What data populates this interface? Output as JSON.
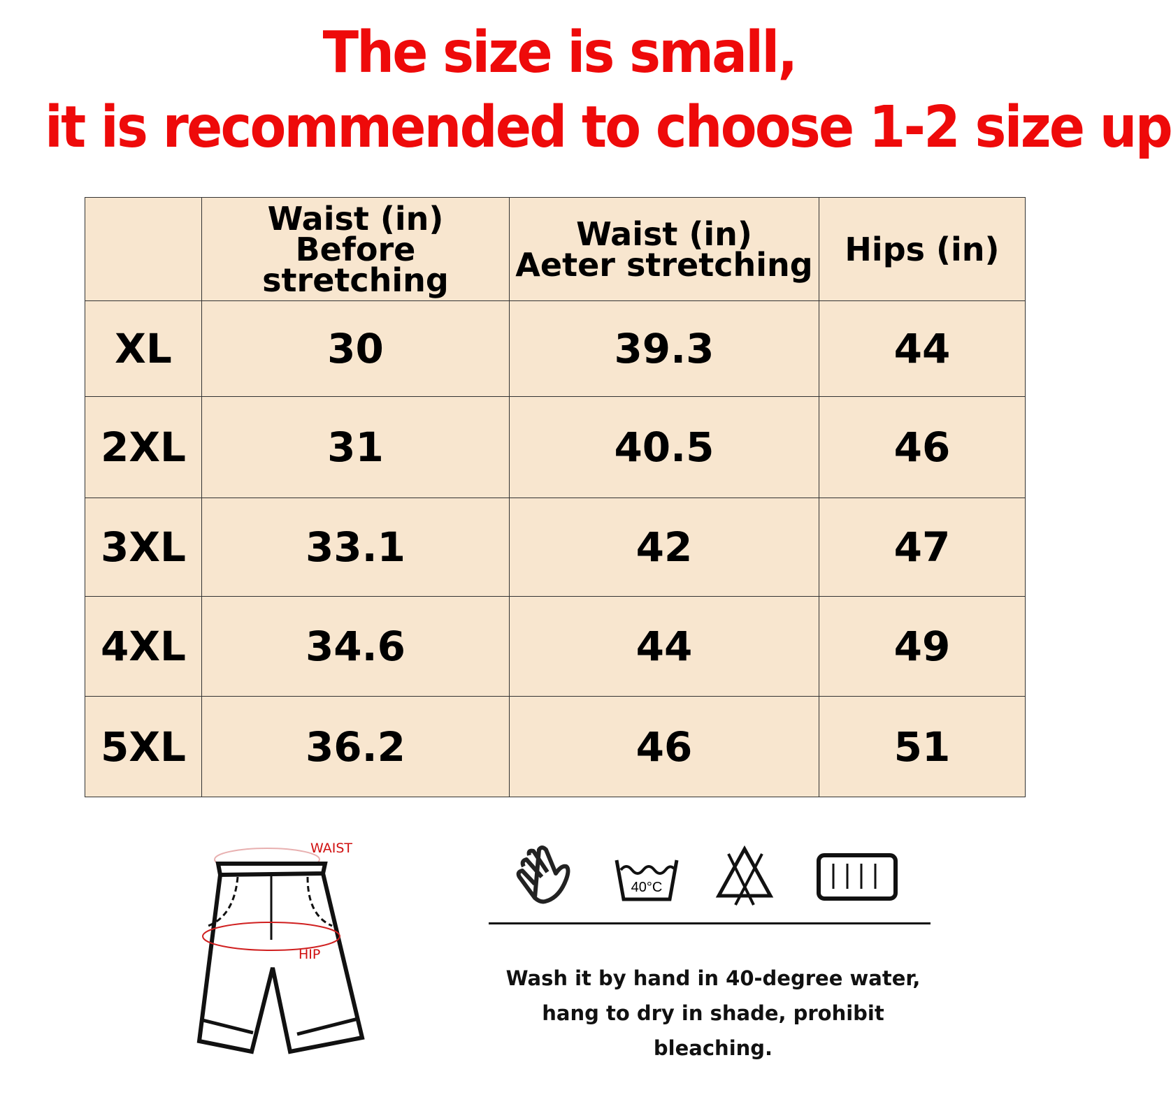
{
  "notice": {
    "line1": "The size is small,",
    "line2": "it is recommended to choose 1-2 size up",
    "color": "#ee0a0a"
  },
  "table": {
    "headers": [
      "",
      "Waist (in)",
      "Before stretching",
      "Waist (in)",
      "Aeter stretching",
      "Hips (in)"
    ],
    "columns": [
      {
        "line1": "",
        "line2": ""
      },
      {
        "line1": "Waist  (in)",
        "line2": "Before stretching"
      },
      {
        "line1": "Waist  (in)",
        "line2": "Aeter stretching"
      },
      {
        "line1": "Hips  (in)",
        "line2": ""
      }
    ],
    "rows": [
      {
        "size": "XL",
        "waist_before": "30",
        "waist_after": "39.3",
        "hips": "44"
      },
      {
        "size": "2XL",
        "waist_before": "31",
        "waist_after": "40.5",
        "hips": "46"
      },
      {
        "size": "3XL",
        "waist_before": "33.1",
        "waist_after": "42",
        "hips": "47"
      },
      {
        "size": "4XL",
        "waist_before": "34.6",
        "waist_after": "44",
        "hips": "49"
      },
      {
        "size": "5XL",
        "waist_before": "36.2",
        "waist_after": "46",
        "hips": "51"
      }
    ],
    "background": "#f8e6cf"
  },
  "diagram": {
    "waist_label": "WAIST",
    "hip_label": "HIP"
  },
  "care": {
    "icons": [
      "hand-wash-icon",
      "wash-40c-icon",
      "no-bleach-icon",
      "line-dry-shade-icon"
    ],
    "temp_label": "40°C",
    "line1": "Wash it by hand in 40-degree water,",
    "line2": "hang to dry in shade, prohibit bleaching."
  }
}
